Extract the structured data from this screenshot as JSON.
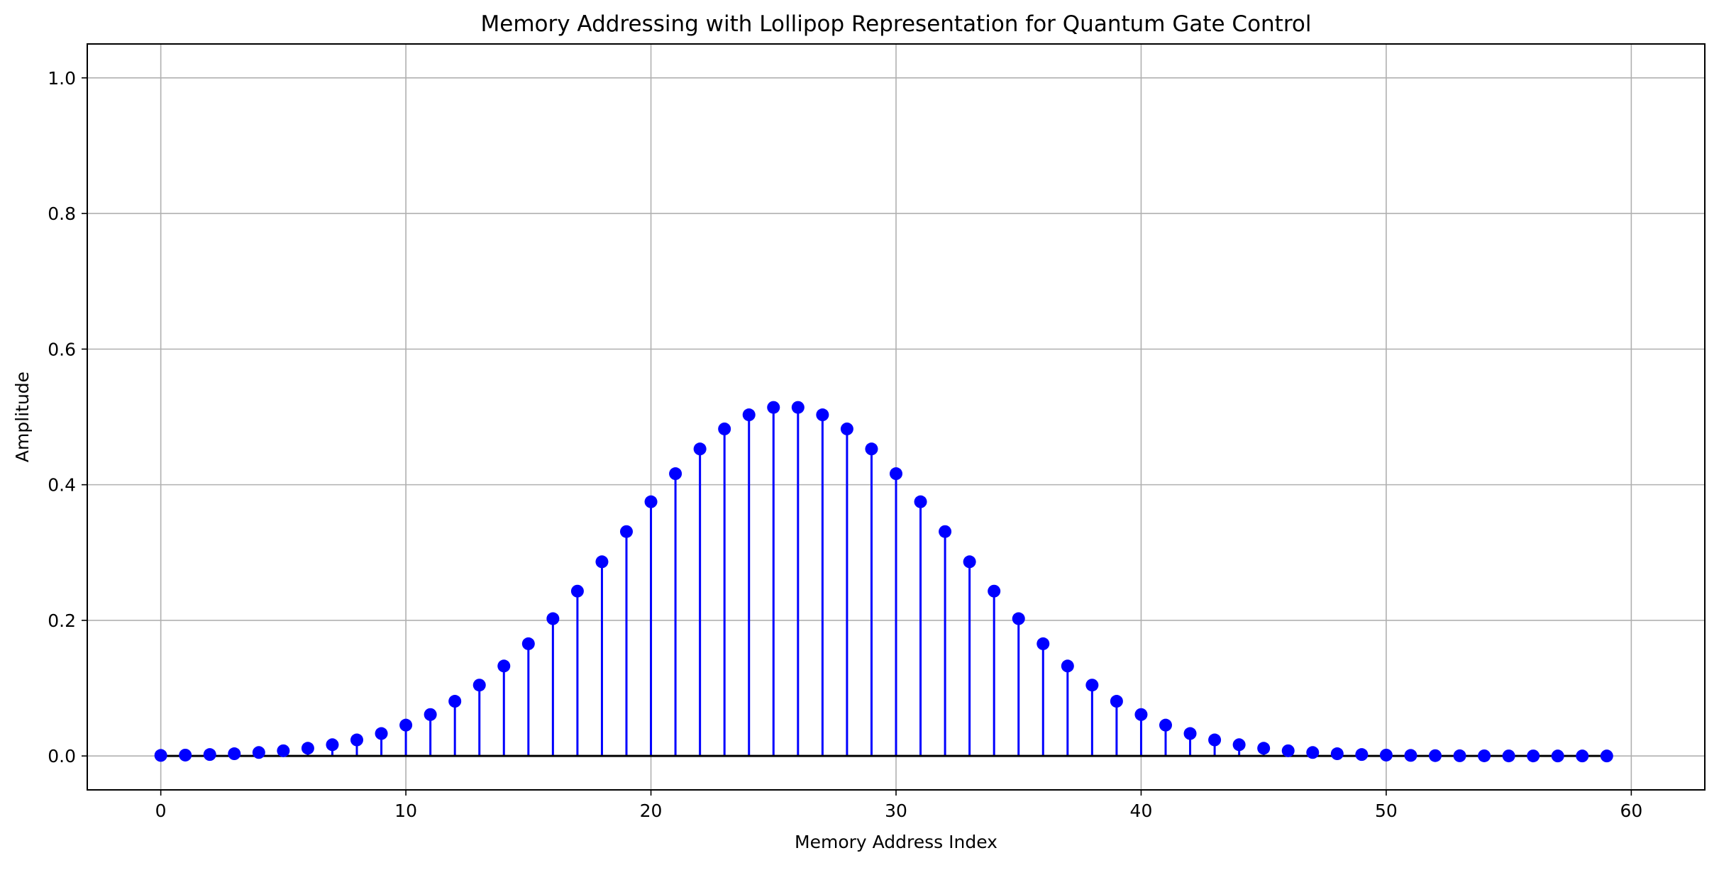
{
  "chart_data": {
    "type": "stem",
    "title": "Memory Addressing with Lollipop Representation for Quantum Gate Control",
    "xlabel": "Memory Address Index",
    "ylabel": "Amplitude",
    "xlim": [
      -3,
      63
    ],
    "ylim": [
      -0.05,
      1.05
    ],
    "x_ticks": [
      0,
      10,
      20,
      30,
      40,
      50,
      60
    ],
    "x_tick_labels": [
      "0",
      "10",
      "20",
      "30",
      "40",
      "50",
      "60"
    ],
    "y_ticks": [
      0.0,
      0.2,
      0.4,
      0.6,
      0.8,
      1.0
    ],
    "y_tick_labels": [
      "0.0",
      "0.2",
      "0.4",
      "0.6",
      "0.8",
      "1.0"
    ],
    "grid": true,
    "marker_color": "#0000ff",
    "stem_color": "#0000ff",
    "baseline_color": "#000000",
    "x": [
      0,
      1,
      2,
      3,
      4,
      5,
      6,
      7,
      8,
      9,
      10,
      11,
      12,
      13,
      14,
      15,
      16,
      17,
      18,
      19,
      20,
      21,
      22,
      23,
      24,
      25,
      26,
      27,
      28,
      29,
      30,
      31,
      32,
      33,
      34,
      35,
      36,
      37,
      38,
      39,
      40,
      41,
      42,
      43,
      44,
      45,
      46,
      47,
      48,
      49,
      50,
      51,
      52,
      53,
      54,
      55,
      56,
      57,
      58,
      59
    ],
    "values": [
      0.0008,
      0.0013,
      0.0021,
      0.0033,
      0.0051,
      0.0077,
      0.0114,
      0.0166,
      0.0237,
      0.0331,
      0.0455,
      0.0611,
      0.0807,
      0.1045,
      0.1327,
      0.1655,
      0.2025,
      0.2431,
      0.2864,
      0.3309,
      0.3749,
      0.4163,
      0.4528,
      0.4823,
      0.5031,
      0.514,
      0.514,
      0.5031,
      0.4823,
      0.4528,
      0.4163,
      0.3749,
      0.3309,
      0.2864,
      0.2431,
      0.2025,
      0.1655,
      0.1327,
      0.1045,
      0.0807,
      0.0611,
      0.0455,
      0.0331,
      0.0237,
      0.0166,
      0.0114,
      0.0077,
      0.0051,
      0.0033,
      0.0021,
      0.0013,
      0.0008,
      0.0005,
      0.0003,
      0.0002,
      0.0001,
      0.0001,
      0.0,
      0.0,
      0.0
    ]
  }
}
